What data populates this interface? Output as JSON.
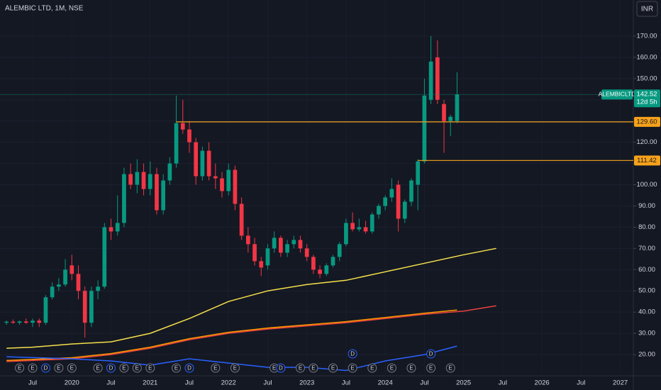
{
  "chart_data": {
    "type": "candlestick",
    "title": "ALEMBIC LTD, 1M, NSE",
    "currency": "INR",
    "up_color": "#089981",
    "down_color": "#f23645",
    "x": [
      "2019-03",
      "2019-04",
      "2019-05",
      "2019-06",
      "2019-07",
      "2019-08",
      "2019-09",
      "2019-10",
      "2019-11",
      "2019-12",
      "2020-01",
      "2020-02",
      "2020-03",
      "2020-04",
      "2020-05",
      "2020-06",
      "2020-07",
      "2020-08",
      "2020-09",
      "2020-10",
      "2020-11",
      "2020-12",
      "2021-01",
      "2021-02",
      "2021-03",
      "2021-04",
      "2021-05",
      "2021-06",
      "2021-07",
      "2021-08",
      "2021-09",
      "2021-10",
      "2021-11",
      "2021-12",
      "2022-01",
      "2022-02",
      "2022-03",
      "2022-04",
      "2022-05",
      "2022-06",
      "2022-07",
      "2022-08",
      "2022-09",
      "2022-10",
      "2022-11",
      "2022-12",
      "2023-01",
      "2023-02",
      "2023-03",
      "2023-04",
      "2023-05",
      "2023-06",
      "2023-07",
      "2023-08",
      "2023-09",
      "2023-10",
      "2023-11",
      "2023-12",
      "2024-01",
      "2024-02",
      "2024-03",
      "2024-04",
      "2024-05",
      "2024-06",
      "2024-07",
      "2024-08",
      "2024-09",
      "2024-10",
      "2024-11",
      "2024-12"
    ],
    "open": [
      35,
      35.5,
      35,
      35.6,
      35,
      36,
      35,
      47,
      52,
      53,
      62,
      58,
      50,
      35,
      50,
      52,
      80,
      78,
      82,
      105,
      100,
      106,
      98,
      105,
      88,
      102,
      110,
      129,
      126,
      120,
      104,
      116,
      104,
      103,
      97,
      107,
      91,
      76,
      72,
      64,
      62,
      70,
      75,
      68,
      72,
      74,
      70,
      66,
      60,
      58,
      62,
      66,
      72,
      82,
      79,
      80,
      78,
      86,
      90,
      94,
      100,
      84,
      92,
      100,
      111,
      140,
      160,
      138,
      130,
      130
    ],
    "high": [
      36,
      36.5,
      36,
      37,
      37,
      37,
      48,
      54,
      56,
      65,
      67,
      62,
      52,
      52,
      55,
      82,
      84,
      95,
      108,
      110,
      112,
      110,
      111,
      108,
      105,
      113,
      142,
      140,
      130,
      122,
      118,
      120,
      110,
      106,
      110,
      109,
      94,
      80,
      75,
      66,
      72,
      78,
      76,
      74,
      76,
      76,
      72,
      67,
      62,
      63,
      67,
      73,
      84,
      87,
      84,
      83,
      87,
      91,
      95,
      103,
      102,
      93,
      103,
      112,
      150,
      170,
      168,
      140,
      133,
      153
    ],
    "low": [
      34,
      34.5,
      34,
      34.5,
      33,
      33,
      34,
      46,
      50,
      52,
      55,
      46,
      28,
      33,
      46,
      51,
      74,
      76,
      80,
      98,
      96,
      95,
      95,
      86,
      86,
      100,
      108,
      124,
      115,
      100,
      102,
      102,
      98,
      94,
      95,
      88,
      74,
      68,
      62,
      57,
      60,
      68,
      66,
      66,
      70,
      68,
      64,
      58,
      56,
      57,
      61,
      64,
      71,
      78,
      78,
      77,
      77,
      84,
      88,
      92,
      78,
      82,
      90,
      88,
      110,
      138,
      138,
      115,
      123,
      129
    ],
    "close": [
      35.5,
      35,
      35.6,
      35,
      36,
      35,
      47,
      52,
      53,
      60,
      58,
      50,
      35,
      50,
      52,
      80,
      78,
      82,
      105,
      100,
      106,
      98,
      105,
      88,
      102,
      110,
      129,
      126,
      120,
      104,
      116,
      104,
      103,
      97,
      107,
      91,
      76,
      72,
      64,
      61,
      70,
      75,
      68,
      72,
      74,
      70,
      66,
      60,
      58,
      62,
      66,
      72,
      82,
      79,
      80,
      78,
      86,
      90,
      94,
      98,
      84,
      92,
      102,
      111,
      142,
      158,
      140,
      130,
      132,
      142.52
    ],
    "xlim": [
      "2019-02",
      "2027-03"
    ],
    "xticks": [
      {
        "value": "2019-07",
        "label": "Jul"
      },
      {
        "value": "2020-01",
        "label": "2020"
      },
      {
        "value": "2020-07",
        "label": "Jul"
      },
      {
        "value": "2021-01",
        "label": "2021"
      },
      {
        "value": "2021-07",
        "label": "Jul"
      },
      {
        "value": "2022-01",
        "label": "2022"
      },
      {
        "value": "2022-07",
        "label": "Jul"
      },
      {
        "value": "2023-01",
        "label": "2023"
      },
      {
        "value": "2023-07",
        "label": "Jul"
      },
      {
        "value": "2024-01",
        "label": "2024"
      },
      {
        "value": "2024-07",
        "label": "Jul"
      },
      {
        "value": "2025-01",
        "label": "2025"
      },
      {
        "value": "2025-07",
        "label": "Jul"
      },
      {
        "value": "2026-01",
        "label": "2026"
      },
      {
        "value": "2026-07",
        "label": "Jul"
      },
      {
        "value": "2027-01",
        "label": "2027"
      }
    ],
    "ylim": [
      10,
      187
    ],
    "yticks": [
      {
        "value": 20,
        "label": "20.00"
      },
      {
        "value": 30,
        "label": "30.00"
      },
      {
        "value": 40,
        "label": "40.00"
      },
      {
        "value": 50,
        "label": "50.00"
      },
      {
        "value": 60,
        "label": "60.00"
      },
      {
        "value": 70,
        "label": "70.00"
      },
      {
        "value": 80,
        "label": "80.00"
      },
      {
        "value": 90,
        "label": "90.00"
      },
      {
        "value": 100,
        "label": "100.00"
      },
      {
        "value": 110,
        "label": "110.00"
      },
      {
        "value": 120,
        "label": "120.00"
      },
      {
        "value": 130,
        "label": "130.00"
      },
      {
        "value": 140,
        "label": "140.00"
      },
      {
        "value": 150,
        "label": "150.00"
      },
      {
        "value": 160,
        "label": "160.00"
      },
      {
        "value": 170,
        "label": "170.00"
      }
    ],
    "levels": [
      {
        "value": 129.6,
        "label": "129.60",
        "from": "2021-05",
        "color": "#f7a21b"
      },
      {
        "value": 111.42,
        "label": "111.42",
        "from": "2024-06",
        "color": "#f7a21b"
      }
    ],
    "last": {
      "name": "ALEMBICLTD",
      "value": 142.52,
      "countdown": "12d 5h",
      "color": "#089981"
    },
    "ma": [
      {
        "color": "#f5e04a",
        "x": [
          "2019-03",
          "2019-07",
          "2020-01",
          "2020-07",
          "2021-01",
          "2021-07",
          "2022-01",
          "2022-07",
          "2023-01",
          "2023-07",
          "2024-01",
          "2024-07",
          "2025-01",
          "2025-06"
        ],
        "values": [
          23,
          23.5,
          25,
          26,
          30,
          37,
          45,
          50,
          53,
          55,
          59,
          63,
          67,
          70
        ]
      },
      {
        "color": "#e8423f",
        "x": [
          "2019-03",
          "2020-01",
          "2020-07",
          "2021-01",
          "2021-07",
          "2022-01",
          "2022-07",
          "2023-01",
          "2023-07",
          "2024-01",
          "2024-07",
          "2025-01",
          "2025-06"
        ],
        "values": [
          16.7,
          18,
          20,
          23,
          27,
          30,
          32,
          33.5,
          35,
          37,
          39,
          40.5,
          43
        ]
      },
      {
        "color": "#ff9800",
        "x": [
          "2019-03",
          "2020-01",
          "2020-07",
          "2021-01",
          "2021-07",
          "2022-01",
          "2022-07",
          "2023-01",
          "2023-07",
          "2024-01",
          "2024-07",
          "2024-12"
        ],
        "values": [
          17.2,
          18.5,
          20.5,
          23.5,
          27.5,
          30.5,
          32.5,
          34,
          35.5,
          37.5,
          39.5,
          41
        ]
      },
      {
        "color": "#2962ff",
        "x": [
          "2019-03",
          "2020-01",
          "2020-07",
          "2021-01",
          "2021-07",
          "2022-01",
          "2022-07",
          "2023-01",
          "2023-07",
          "2024-01",
          "2024-07",
          "2024-12"
        ],
        "values": [
          19,
          18,
          17,
          15,
          18,
          16,
          14,
          14,
          12.5,
          17,
          20,
          24
        ]
      }
    ],
    "events": [
      {
        "date": "2019-05",
        "label": "E",
        "color": "#787b86"
      },
      {
        "date": "2019-07",
        "label": "E",
        "color": "#787b86"
      },
      {
        "date": "2019-09",
        "label": "D",
        "color": "#2962ff"
      },
      {
        "date": "2019-11",
        "label": "E",
        "color": "#787b86"
      },
      {
        "date": "2020-01",
        "label": "E",
        "color": "#787b86"
      },
      {
        "date": "2020-05",
        "label": "E",
        "color": "#787b86"
      },
      {
        "date": "2020-07",
        "label": "D",
        "color": "#2962ff"
      },
      {
        "date": "2020-09",
        "label": "E",
        "color": "#787b86"
      },
      {
        "date": "2020-11",
        "label": "E",
        "color": "#787b86"
      },
      {
        "date": "2021-01",
        "label": "E",
        "color": "#787b86"
      },
      {
        "date": "2021-05",
        "label": "E",
        "color": "#787b86"
      },
      {
        "date": "2021-07",
        "label": "D",
        "color": "#2962ff"
      },
      {
        "date": "2021-11",
        "label": "E",
        "color": "#787b86"
      },
      {
        "date": "2022-02",
        "label": "E",
        "color": "#787b86"
      },
      {
        "date": "2022-08",
        "label": "E",
        "color": "#787b86"
      },
      {
        "date": "2022-09",
        "label": "D",
        "color": "#2962ff"
      },
      {
        "date": "2022-12",
        "label": "E",
        "color": "#787b86"
      },
      {
        "date": "2023-02",
        "label": "E",
        "color": "#787b86"
      },
      {
        "date": "2023-05",
        "label": "E",
        "color": "#787b86"
      },
      {
        "date": "2023-08",
        "label": "E",
        "color": "#787b86"
      },
      {
        "date": "2023-08",
        "label": "D",
        "color": "#2962ff"
      },
      {
        "date": "2023-11",
        "label": "E",
        "color": "#787b86"
      },
      {
        "date": "2024-02",
        "label": "E",
        "color": "#787b86"
      },
      {
        "date": "2024-05",
        "label": "E",
        "color": "#787b86"
      },
      {
        "date": "2024-08",
        "label": "E",
        "color": "#787b86"
      },
      {
        "date": "2024-08",
        "label": "D",
        "color": "#2962ff"
      },
      {
        "date": "2024-11",
        "label": "E",
        "color": "#787b86"
      }
    ]
  }
}
